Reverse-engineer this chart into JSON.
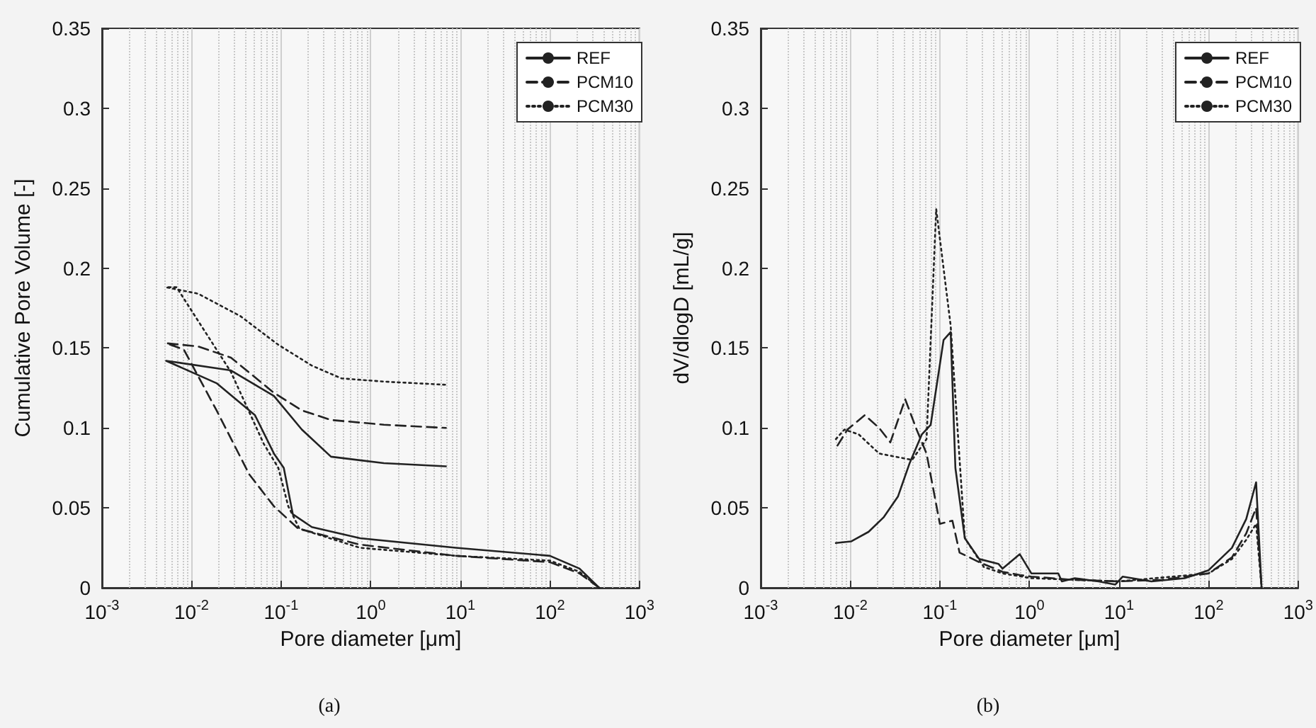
{
  "chart_data": [
    {
      "type": "line",
      "xlabel": "Pore diameter [μm]",
      "ylabel": "Cumulative Pore Volume [-]",
      "log": "x",
      "grid": "x",
      "legend": "top right",
      "marker": "none",
      "xlim": [
        0.001,
        1000
      ],
      "ylim": [
        0,
        0.35
      ],
      "xticks": [
        {
          "value": 0.001,
          "label": "10$^{-3}$"
        },
        {
          "value": 0.01,
          "label": "10$^{-2}$"
        },
        {
          "value": 0.1,
          "label": "10$^{-1}$"
        },
        {
          "value": 1,
          "label": "10$^{0}$"
        },
        {
          "value": 10,
          "label": "10$^{1}$"
        },
        {
          "value": 100,
          "label": "10$^{2}$"
        },
        {
          "value": 1000,
          "label": "10$^{3}$"
        }
      ],
      "yticks": [
        0,
        0.05,
        0.1,
        0.15,
        0.2,
        0.25,
        0.3,
        0.35
      ],
      "annotations": [
        "(a)"
      ],
      "series": [
        {
          "name": "REF",
          "color": "#222222",
          "line_style": "solid",
          "x": [
            355,
            214,
            100,
            8.9,
            0.76,
            0.22,
            0.135,
            0.107,
            0.083,
            0.051,
            0.019,
            0.0052,
            0.0275,
            0.083,
            0.17,
            0.36,
            1.4,
            6.9
          ],
          "values": [
            0,
            0.012,
            0.02,
            0.025,
            0.031,
            0.038,
            0.046,
            0.075,
            0.084,
            0.108,
            0.128,
            0.142,
            0.136,
            0.12,
            0.099,
            0.082,
            0.078,
            0.076
          ]
        },
        {
          "name": "PCM10",
          "color": "#222222",
          "line_style": "dashed",
          "x": [
            355,
            214,
            100,
            8.9,
            0.76,
            0.155,
            0.083,
            0.044,
            0.019,
            0.0082,
            0.0052,
            0.0118,
            0.0275,
            0.083,
            0.17,
            0.36,
            1.4,
            6.9
          ],
          "values": [
            0,
            0.009,
            0.016,
            0.02,
            0.027,
            0.037,
            0.051,
            0.071,
            0.111,
            0.149,
            0.153,
            0.151,
            0.144,
            0.122,
            0.111,
            0.105,
            0.102,
            0.1
          ]
        },
        {
          "name": "PCM30",
          "color": "#222222",
          "line_style": "dotted",
          "x": [
            355,
            214,
            100,
            8.9,
            0.76,
            0.16,
            0.12,
            0.093,
            0.064,
            0.0275,
            0.0068,
            0.0052,
            0.0118,
            0.035,
            0.093,
            0.22,
            0.47,
            1.4,
            6.9
          ],
          "values": [
            0,
            0.01,
            0.017,
            0.02,
            0.025,
            0.037,
            0.051,
            0.075,
            0.09,
            0.135,
            0.188,
            0.188,
            0.184,
            0.17,
            0.152,
            0.139,
            0.131,
            0.129,
            0.127
          ]
        }
      ]
    },
    {
      "type": "line",
      "xlabel": "Pore diameter [μm]",
      "ylabel": "dV/dlogD [mL/g]",
      "log": "x",
      "grid": "x",
      "legend": "top right",
      "marker": "none",
      "xlim": [
        0.001,
        1000
      ],
      "ylim": [
        0,
        0.35
      ],
      "xticks": [
        {
          "value": 0.001,
          "label": "10$^{-3}$"
        },
        {
          "value": 0.01,
          "label": "10$^{-2}$"
        },
        {
          "value": 0.1,
          "label": "10$^{-1}$"
        },
        {
          "value": 1,
          "label": "10$^{0}$"
        },
        {
          "value": 10,
          "label": "10$^{1}$"
        },
        {
          "value": 100,
          "label": "10$^{2}$"
        },
        {
          "value": 1000,
          "label": "10$^{3}$"
        }
      ],
      "yticks": [
        0,
        0.05,
        0.1,
        0.15,
        0.2,
        0.25,
        0.3,
        0.35
      ],
      "annotations": [
        "(b)"
      ],
      "series": [
        {
          "name": "REF",
          "color": "#222222",
          "line_style": "solid",
          "x": [
            0.0069,
            0.0102,
            0.016,
            0.0235,
            0.034,
            0.046,
            0.063,
            0.079,
            0.11,
            0.132,
            0.149,
            0.19,
            0.275,
            0.45,
            0.5,
            0.78,
            1.05,
            2.1,
            2.3,
            3.2,
            5.9,
            9.1,
            11,
            23,
            54,
            100,
            182,
            263,
            339,
            390
          ],
          "values": [
            0.028,
            0.029,
            0.035,
            0.044,
            0.057,
            0.078,
            0.096,
            0.102,
            0.155,
            0.16,
            0.075,
            0.031,
            0.018,
            0.015,
            0.012,
            0.021,
            0.009,
            0.009,
            0.004,
            0.006,
            0.004,
            0.002,
            0.007,
            0.004,
            0.006,
            0.011,
            0.025,
            0.043,
            0.066,
            0
          ]
        },
        {
          "name": "PCM10",
          "color": "#222222",
          "line_style": "dashed",
          "x": [
            0.0072,
            0.0093,
            0.0145,
            0.021,
            0.028,
            0.041,
            0.055,
            0.071,
            0.1,
            0.138,
            0.166,
            0.275,
            0.5,
            0.78,
            1.05,
            3,
            10,
            30,
            100,
            182,
            263,
            339,
            390
          ],
          "values": [
            0.089,
            0.099,
            0.108,
            0.1,
            0.091,
            0.118,
            0.099,
            0.084,
            0.04,
            0.042,
            0.022,
            0.016,
            0.01,
            0.008,
            0.007,
            0.005,
            0.004,
            0.005,
            0.009,
            0.019,
            0.034,
            0.05,
            0
          ]
        },
        {
          "name": "PCM30",
          "color": "#222222",
          "line_style": "dotted",
          "x": [
            0.0069,
            0.0086,
            0.0124,
            0.021,
            0.049,
            0.071,
            0.091,
            0.132,
            0.19,
            0.31,
            0.5,
            1.05,
            10,
            100,
            182,
            263,
            339,
            390
          ],
          "values": [
            0.093,
            0.099,
            0.096,
            0.084,
            0.08,
            0.093,
            0.237,
            0.164,
            0.031,
            0.013,
            0.009,
            0.006,
            0.004,
            0.009,
            0.018,
            0.03,
            0.04,
            0
          ]
        }
      ]
    }
  ]
}
